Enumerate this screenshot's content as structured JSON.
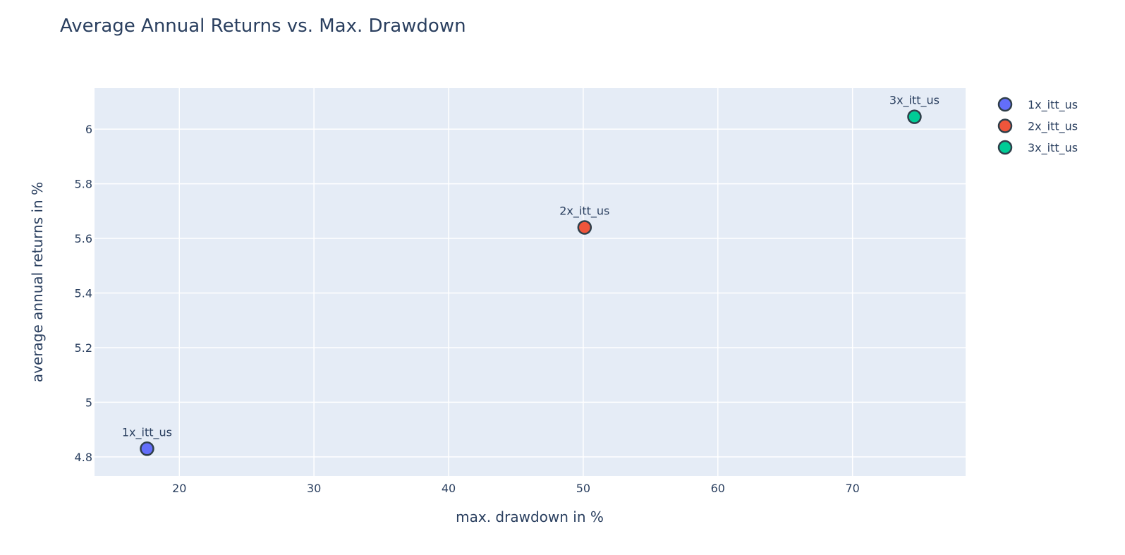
{
  "chart_data": {
    "type": "scatter",
    "title": "Average Annual Returns vs. Max. Drawdown",
    "xlabel": "max. drawdown in %",
    "ylabel": "average annual returns in %",
    "xlim": [
      13.7,
      78.4
    ],
    "ylim": [
      4.73,
      6.15
    ],
    "xticks": [
      20,
      30,
      40,
      50,
      60,
      70
    ],
    "xtick_labels": [
      "20",
      "30",
      "40",
      "50",
      "60",
      "70"
    ],
    "yticks": [
      4.8,
      5.0,
      5.2,
      5.4,
      5.6,
      5.8,
      6.0
    ],
    "ytick_labels": [
      "4.8",
      "5",
      "5.2",
      "5.4",
      "5.6",
      "5.8",
      "6"
    ],
    "grid": true,
    "plot_background": "#e5ecf6",
    "legend_position": "top-right",
    "series": [
      {
        "name": "1x_itt_us",
        "x": [
          17.6
        ],
        "y": [
          4.83
        ],
        "text": [
          "1x_itt_us"
        ],
        "color": "#636efa"
      },
      {
        "name": "2x_itt_us",
        "x": [
          50.1
        ],
        "y": [
          5.64
        ],
        "text": [
          "2x_itt_us"
        ],
        "color": "#ef553b"
      },
      {
        "name": "3x_itt_us",
        "x": [
          74.6
        ],
        "y": [
          6.045
        ],
        "text": [
          "3x_itt_us"
        ],
        "color": "#00cc96"
      }
    ]
  }
}
